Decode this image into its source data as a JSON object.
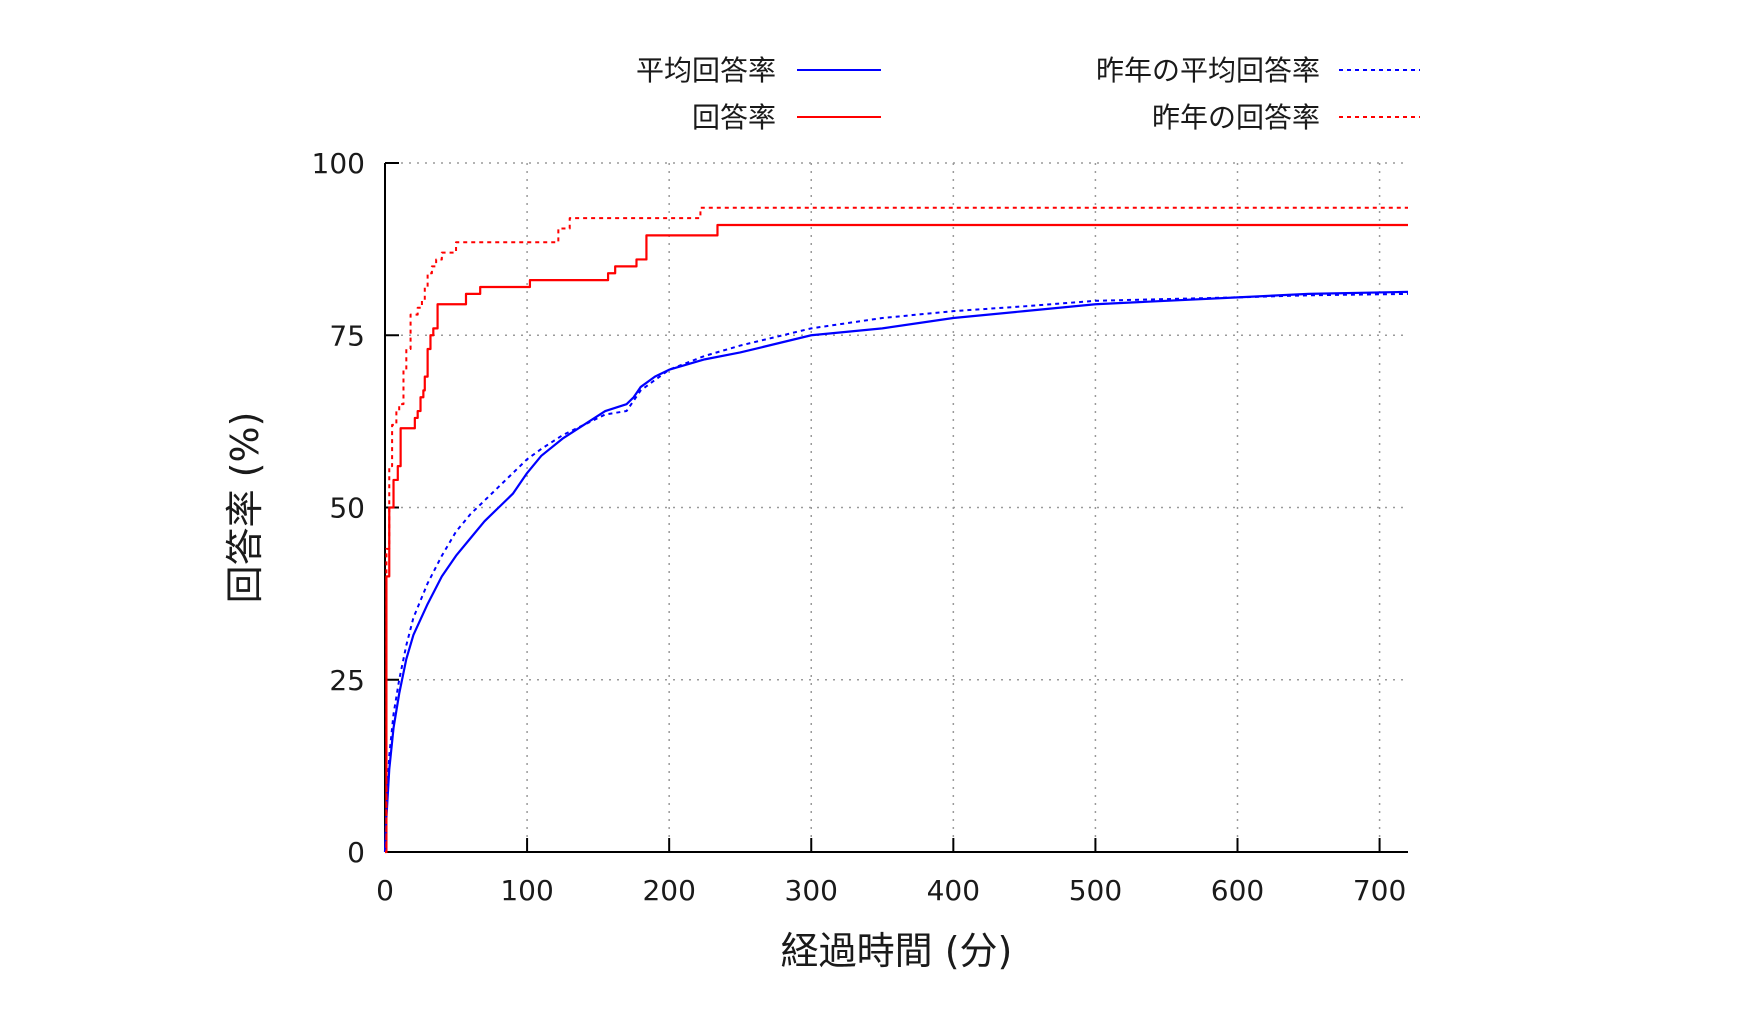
{
  "chart_data": {
    "type": "line",
    "title": "",
    "xlabel": "経過時間 (分)",
    "ylabel": "回答率 (%)",
    "xlim": [
      0,
      720
    ],
    "ylim": [
      0,
      100
    ],
    "xticks": [
      0,
      100,
      200,
      300,
      400,
      500,
      600,
      700
    ],
    "yticks": [
      0,
      25,
      50,
      75,
      100
    ],
    "grid": true,
    "legend_position": "top, two columns above the plot",
    "series": [
      {
        "name": "平均回答率",
        "color": "#0000ff",
        "dash": "solid",
        "interpolation": "linear",
        "points": [
          [
            0,
            0
          ],
          [
            1,
            5
          ],
          [
            3,
            12
          ],
          [
            6,
            18
          ],
          [
            10,
            23
          ],
          [
            15,
            28
          ],
          [
            20,
            31.5
          ],
          [
            30,
            36
          ],
          [
            40,
            40
          ],
          [
            50,
            43
          ],
          [
            60,
            45.5
          ],
          [
            70,
            48
          ],
          [
            80,
            50
          ],
          [
            90,
            52
          ],
          [
            100,
            55
          ],
          [
            110,
            57.5
          ],
          [
            125,
            60
          ],
          [
            140,
            62
          ],
          [
            155,
            64
          ],
          [
            170,
            65
          ],
          [
            175,
            66
          ],
          [
            180,
            67.5
          ],
          [
            190,
            69
          ],
          [
            200,
            70
          ],
          [
            225,
            71.5
          ],
          [
            250,
            72.5
          ],
          [
            300,
            75
          ],
          [
            350,
            76
          ],
          [
            400,
            77.5
          ],
          [
            450,
            78.5
          ],
          [
            500,
            79.5
          ],
          [
            600,
            80.5
          ],
          [
            650,
            81
          ],
          [
            720,
            81.3
          ]
        ]
      },
      {
        "name": "回答率",
        "color": "#ff0000",
        "dash": "solid",
        "interpolation": "step",
        "points": [
          [
            0,
            0
          ],
          [
            1,
            40
          ],
          [
            3,
            50
          ],
          [
            6,
            54
          ],
          [
            9,
            56
          ],
          [
            11,
            61.5
          ],
          [
            20,
            61.5
          ],
          [
            21,
            63
          ],
          [
            23,
            64
          ],
          [
            25,
            66
          ],
          [
            27,
            67
          ],
          [
            28,
            69
          ],
          [
            30,
            73
          ],
          [
            32,
            75
          ],
          [
            34,
            76
          ],
          [
            37,
            79.5
          ],
          [
            55,
            79.5
          ],
          [
            57,
            81
          ],
          [
            65,
            81
          ],
          [
            67,
            82
          ],
          [
            100,
            82
          ],
          [
            102,
            83
          ],
          [
            155,
            83
          ],
          [
            157,
            84
          ],
          [
            160,
            84
          ],
          [
            162,
            85
          ],
          [
            175,
            85
          ],
          [
            177,
            86
          ],
          [
            182,
            86
          ],
          [
            184,
            89.5
          ],
          [
            232,
            89.5
          ],
          [
            234,
            91
          ],
          [
            720,
            91
          ]
        ]
      },
      {
        "name": "昨年の平均回答率",
        "color": "#0000ff",
        "dash": "dotted",
        "interpolation": "linear",
        "points": [
          [
            0,
            0
          ],
          [
            1,
            6
          ],
          [
            3,
            14
          ],
          [
            6,
            20
          ],
          [
            10,
            25
          ],
          [
            15,
            30
          ],
          [
            20,
            34
          ],
          [
            30,
            39
          ],
          [
            40,
            43
          ],
          [
            50,
            46.5
          ],
          [
            60,
            49
          ],
          [
            70,
            51
          ],
          [
            80,
            53
          ],
          [
            90,
            55
          ],
          [
            100,
            57
          ],
          [
            110,
            58.5
          ],
          [
            125,
            60.5
          ],
          [
            140,
            62
          ],
          [
            155,
            63.5
          ],
          [
            170,
            64
          ],
          [
            175,
            65.5
          ],
          [
            180,
            67
          ],
          [
            190,
            68.5
          ],
          [
            200,
            70
          ],
          [
            225,
            72
          ],
          [
            250,
            73.5
          ],
          [
            300,
            76
          ],
          [
            350,
            77.5
          ],
          [
            400,
            78.5
          ],
          [
            450,
            79.2
          ],
          [
            500,
            80
          ],
          [
            600,
            80.5
          ],
          [
            650,
            80.8
          ],
          [
            720,
            81
          ]
        ]
      },
      {
        "name": "昨年の回答率",
        "color": "#ff0000",
        "dash": "dotted",
        "interpolation": "step",
        "points": [
          [
            0,
            0
          ],
          [
            1,
            44
          ],
          [
            3,
            56
          ],
          [
            5,
            62
          ],
          [
            8,
            64
          ],
          [
            10,
            65
          ],
          [
            13,
            70
          ],
          [
            15,
            73
          ],
          [
            18,
            78
          ],
          [
            23,
            79
          ],
          [
            26,
            80
          ],
          [
            28,
            82
          ],
          [
            30,
            84
          ],
          [
            33,
            85
          ],
          [
            36,
            86
          ],
          [
            40,
            87
          ],
          [
            50,
            88.5
          ],
          [
            120,
            88.5
          ],
          [
            122,
            90.5
          ],
          [
            128,
            90.5
          ],
          [
            130,
            92
          ],
          [
            220,
            92
          ],
          [
            222,
            93.5
          ],
          [
            720,
            93.5
          ]
        ]
      }
    ]
  }
}
